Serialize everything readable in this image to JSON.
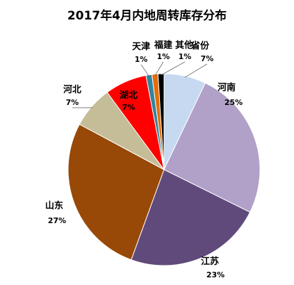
{
  "chart_data": {
    "type": "pie",
    "title": "2017年4月内地周转库存分布",
    "slices": [
      {
        "label": "省份",
        "pct_label": "7%",
        "value": 7,
        "color": "#c6d9f0"
      },
      {
        "label": "河南",
        "pct_label": "25%",
        "value": 25,
        "color": "#b1a0c7"
      },
      {
        "label": "江苏",
        "pct_label": "23%",
        "value": 23,
        "color": "#604a7b"
      },
      {
        "label": "山东",
        "pct_label": "27%",
        "value": 27,
        "color": "#984807"
      },
      {
        "label": "河北",
        "pct_label": "7%",
        "value": 7,
        "color": "#c4bd97"
      },
      {
        "label": "湖北",
        "pct_label": "7%",
        "value": 7,
        "color": "#ff0000"
      },
      {
        "label": "天津",
        "pct_label": "1%",
        "value": 1,
        "color": "#31859c"
      },
      {
        "label": "福建",
        "pct_label": "1%",
        "value": 1,
        "color": "#e46c0a"
      },
      {
        "label": "其他",
        "pct_label": "1%",
        "value": 1,
        "color": "#000000"
      }
    ],
    "legend": "none"
  }
}
